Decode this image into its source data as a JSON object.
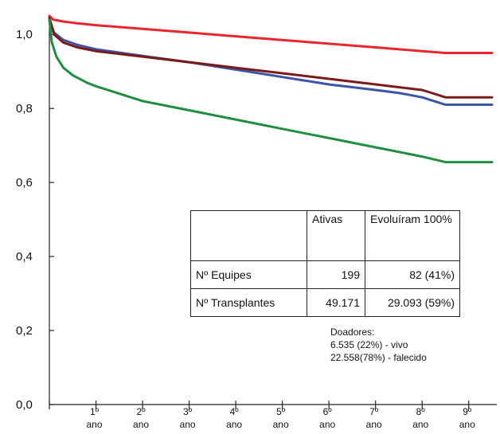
{
  "chart_data": {
    "type": "line",
    "x_tick_labels": [
      {
        "num": "1º",
        "unit": "ano"
      },
      {
        "num": "2º",
        "unit": "ano"
      },
      {
        "num": "3º",
        "unit": "ano"
      },
      {
        "num": "4º",
        "unit": "ano"
      },
      {
        "num": "5º",
        "unit": "ano"
      },
      {
        "num": "6º",
        "unit": "ano"
      },
      {
        "num": "7º",
        "unit": "ano"
      },
      {
        "num": "8º",
        "unit": "ano"
      },
      {
        "num": "9º",
        "unit": "ano"
      }
    ],
    "y_ticks": [
      {
        "value": 0.0,
        "label": "0,0"
      },
      {
        "value": 0.2,
        "label": "0,2"
      },
      {
        "value": 0.4,
        "label": "0,4"
      },
      {
        "value": 0.6,
        "label": "0,6"
      },
      {
        "value": 0.8,
        "label": "0,8"
      },
      {
        "value": 1.0,
        "label": "1,0"
      }
    ],
    "xlim": [
      0,
      9.5
    ],
    "ylim": [
      0,
      1.05
    ],
    "grid": false,
    "series": [
      {
        "color": "#e8262c",
        "points": [
          [
            0,
            1.05
          ],
          [
            0.08,
            1.04
          ],
          [
            0.3,
            1.035
          ],
          [
            0.6,
            1.03
          ],
          [
            1,
            1.025
          ],
          [
            2,
            1.015
          ],
          [
            3,
            1.005
          ],
          [
            4,
            0.995
          ],
          [
            5,
            0.985
          ],
          [
            6,
            0.975
          ],
          [
            7,
            0.965
          ],
          [
            8,
            0.955
          ],
          [
            8.5,
            0.95
          ],
          [
            9.5,
            0.95
          ]
        ]
      },
      {
        "color": "#3a55a8",
        "points": [
          [
            0,
            1.04
          ],
          [
            0.1,
            1.005
          ],
          [
            0.3,
            0.985
          ],
          [
            0.6,
            0.972
          ],
          [
            1,
            0.96
          ],
          [
            2,
            0.942
          ],
          [
            3,
            0.925
          ],
          [
            4,
            0.905
          ],
          [
            5,
            0.885
          ],
          [
            6,
            0.865
          ],
          [
            7,
            0.85
          ],
          [
            7.5,
            0.842
          ],
          [
            8,
            0.83
          ],
          [
            8.5,
            0.81
          ],
          [
            9.5,
            0.81
          ]
        ]
      },
      {
        "color": "#7a1a1a",
        "points": [
          [
            0,
            1.045
          ],
          [
            0.1,
            1.0
          ],
          [
            0.3,
            0.978
          ],
          [
            0.6,
            0.965
          ],
          [
            1,
            0.955
          ],
          [
            2,
            0.94
          ],
          [
            3,
            0.925
          ],
          [
            4,
            0.91
          ],
          [
            5,
            0.895
          ],
          [
            6,
            0.88
          ],
          [
            7,
            0.865
          ],
          [
            8,
            0.85
          ],
          [
            8.5,
            0.83
          ],
          [
            9.5,
            0.83
          ]
        ]
      },
      {
        "color": "#1f8f3f",
        "points": [
          [
            0,
            1.04
          ],
          [
            0.05,
            0.98
          ],
          [
            0.15,
            0.94
          ],
          [
            0.3,
            0.91
          ],
          [
            0.5,
            0.89
          ],
          [
            0.8,
            0.87
          ],
          [
            1,
            0.86
          ],
          [
            1.5,
            0.84
          ],
          [
            2,
            0.82
          ],
          [
            3,
            0.795
          ],
          [
            4,
            0.77
          ],
          [
            5,
            0.745
          ],
          [
            6,
            0.72
          ],
          [
            7,
            0.695
          ],
          [
            8,
            0.67
          ],
          [
            8.5,
            0.655
          ],
          [
            9.5,
            0.655
          ]
        ]
      }
    ]
  },
  "table": {
    "headers": [
      "",
      "Ativas",
      "Evoluíram 100%"
    ],
    "rows": [
      {
        "label": "Nº Equipes",
        "ativas": "199",
        "evoluiram": "82 (41%)"
      },
      {
        "label": "Nº Transplantes",
        "ativas": "49.171",
        "evoluiram": "29.093 (59%)"
      }
    ]
  },
  "donors": {
    "title": "Doadores:",
    "lines": [
      "6.535 (22%) - vivo",
      "22.558(78%) - falecido"
    ]
  }
}
